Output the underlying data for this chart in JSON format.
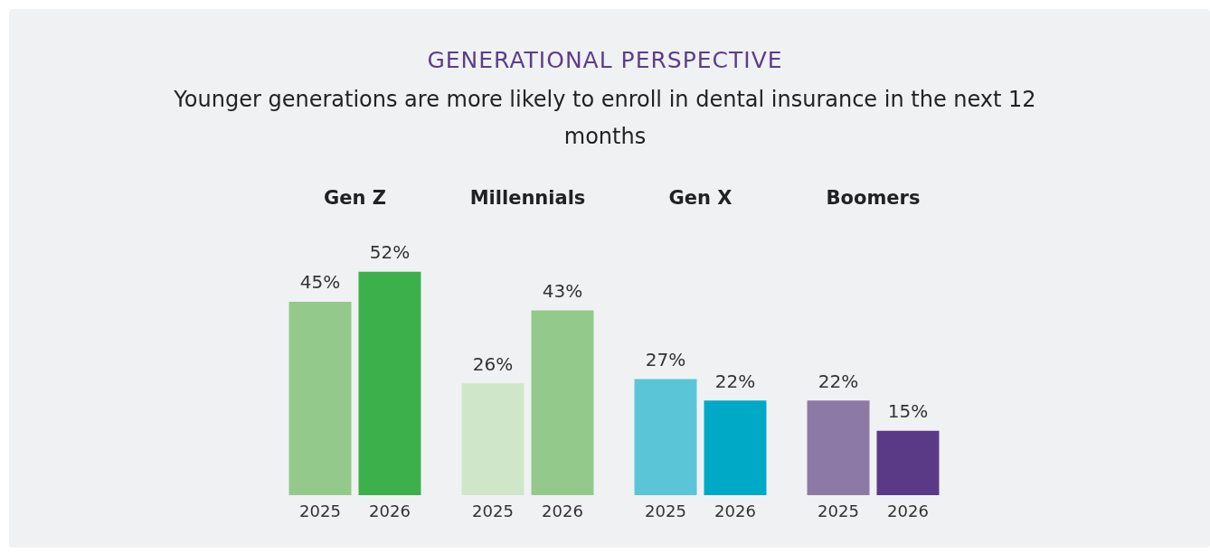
{
  "chart_data": {
    "type": "bar",
    "title": "GENERATIONAL PERSPECTIVE",
    "subtitle": "Younger generations are more likely to enroll in dental insurance in the next 12 months",
    "categories": [
      "Gen Z",
      "Millennials",
      "Gen X",
      "Boomers"
    ],
    "series": [
      {
        "name": "2025",
        "values": [
          45,
          26,
          27,
          22
        ],
        "value_labels": [
          "45%",
          "26%",
          "27%",
          "22%"
        ],
        "colors": [
          "#93c98a",
          "#d0e6c9",
          "#5bc5d8",
          "#8d79a6"
        ]
      },
      {
        "name": "2026",
        "values": [
          52,
          43,
          22,
          15
        ],
        "value_labels": [
          "52%",
          "43%",
          "22%",
          "15%"
        ],
        "colors": [
          "#3cb04a",
          "#93c98a",
          "#00a9c6",
          "#5a3a86"
        ]
      }
    ],
    "grid": false
  }
}
